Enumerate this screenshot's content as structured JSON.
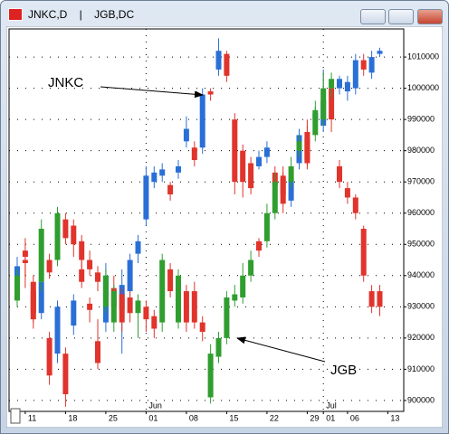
{
  "window_title": "JNKC,D    |    JGB,DC",
  "chart_data": {
    "type": "candlestick",
    "categories": [
      null,
      "11",
      null,
      null,
      null,
      null,
      "18",
      null,
      null,
      null,
      null,
      "25",
      null,
      null,
      null,
      null,
      "01",
      null,
      null,
      null,
      null,
      "08",
      null,
      null,
      null,
      null,
      "15",
      null,
      null,
      null,
      null,
      "22",
      null,
      null,
      null,
      null,
      "29",
      null,
      "01",
      null,
      null,
      "06",
      null,
      null,
      null,
      null,
      "13"
    ],
    "months": [
      null,
      null,
      null,
      null,
      null,
      null,
      null,
      null,
      null,
      null,
      null,
      null,
      null,
      null,
      null,
      null,
      "Jun",
      null,
      null,
      null,
      null,
      null,
      null,
      null,
      null,
      null,
      null,
      null,
      null,
      null,
      null,
      null,
      null,
      null,
      null,
      null,
      null,
      null,
      "Jul",
      null,
      null,
      null,
      null,
      null,
      null,
      null,
      null
    ],
    "ylim": [
      896500,
      1019000
    ],
    "yticks": [
      900000,
      910000,
      920000,
      930000,
      940000,
      950000,
      960000,
      970000,
      980000,
      990000,
      1000000,
      1010000
    ],
    "grid": true,
    "annotations": [
      "JNKC",
      "JGB"
    ],
    "series": [
      {
        "name": "JNKC",
        "up_color": "#2a6fd6",
        "down_color": "#e0342c",
        "open": [
          935000,
          945000,
          935000,
          928000,
          920000,
          915000,
          915000,
          924000,
          942000,
          931000,
          919000,
          925000,
          936000,
          929000,
          935000,
          947000,
          958000,
          970000,
          972000,
          969000,
          973000,
          983000,
          981000,
          981000,
          999000,
          1006000,
          1011000,
          990000,
          980000,
          976000,
          975000,
          978000,
          973000,
          971000,
          964000,
          976000,
          986000,
          990000,
          988000,
          1000000,
          1000000,
          999000,
          1000000,
          1009000,
          1005000,
          1011000,
          null
        ],
        "high": [
          946000,
          947000,
          937000,
          940000,
          922000,
          932000,
          917000,
          934000,
          945000,
          933000,
          926000,
          944000,
          940000,
          942000,
          947000,
          953000,
          975000,
          975000,
          976000,
          970000,
          977000,
          991000,
          983000,
          1000000,
          1000000,
          1016000,
          1012000,
          992000,
          982000,
          978000,
          980000,
          983000,
          975000,
          973000,
          973000,
          987000,
          988000,
          994000,
          1006000,
          1002000,
          1004000,
          1004000,
          1011000,
          1011000,
          1012000,
          1013000,
          null
        ],
        "low": [
          932000,
          940000,
          923000,
          926000,
          905000,
          912000,
          898000,
          921000,
          936000,
          925000,
          910000,
          922000,
          928000,
          915000,
          933000,
          944000,
          956000,
          968000,
          970000,
          964000,
          971000,
          981000,
          975000,
          979000,
          996000,
          1004000,
          1002000,
          966000,
          965000,
          966000,
          974000,
          976000,
          966000,
          960000,
          962000,
          974000,
          975000,
          988000,
          986000,
          986000,
          998000,
          996000,
          998000,
          1004000,
          1003000,
          1010000,
          null
        ],
        "close": [
          943000,
          944000,
          926000,
          938000,
          908000,
          930000,
          902000,
          932000,
          938000,
          929000,
          912000,
          940000,
          930000,
          937000,
          945000,
          951000,
          972000,
          973000,
          974000,
          966000,
          975000,
          987000,
          977000,
          998000,
          998000,
          1012000,
          1004000,
          970000,
          970000,
          968000,
          978000,
          981000,
          969000,
          963000,
          971000,
          985000,
          977000,
          992000,
          996000,
          990000,
          1003000,
          1002000,
          1009000,
          1006000,
          1010000,
          1012000,
          null
        ]
      },
      {
        "name": "JGB",
        "up_color": "#2f9e2f",
        "down_color": "#e0342c",
        "open": [
          932000,
          948000,
          938000,
          938000,
          945000,
          945000,
          958000,
          956000,
          951000,
          945000,
          941000,
          930000,
          925000,
          934000,
          933000,
          928000,
          930000,
          927000,
          925000,
          942000,
          925000,
          935000,
          935000,
          925000,
          901000,
          914000,
          920000,
          932000,
          933000,
          940000,
          951000,
          951000,
          960000,
          972000,
          970000,
          980000,
          984000,
          985000,
          990000,
          1000000,
          975000,
          968000,
          965000,
          955000,
          935000,
          935000,
          null
        ],
        "high": [
          942000,
          952000,
          940000,
          958000,
          947000,
          962000,
          960000,
          958000,
          953000,
          948000,
          943000,
          942000,
          937000,
          936000,
          935000,
          934000,
          932000,
          929000,
          947000,
          944000,
          942000,
          937000,
          938000,
          927000,
          918000,
          922000,
          935000,
          937000,
          944000,
          948000,
          952000,
          963000,
          973000,
          975000,
          978000,
          985000,
          990000,
          996000,
          1005000,
          1005000,
          977000,
          970000,
          966000,
          956000,
          937000,
          937000,
          null
        ],
        "low": [
          930000,
          936000,
          925000,
          935000,
          939000,
          943000,
          950000,
          946000,
          940000,
          940000,
          935000,
          928000,
          922000,
          922000,
          925000,
          920000,
          922000,
          920000,
          922000,
          933000,
          923000,
          922000,
          923000,
          919000,
          899000,
          912000,
          918000,
          930000,
          931000,
          938000,
          946000,
          949000,
          958000,
          964000,
          968000,
          978000,
          974000,
          983000,
          988000,
          997000,
          968000,
          963000,
          958000,
          938000,
          928000,
          927000,
          null
        ],
        "close": [
          940000,
          946000,
          928000,
          955000,
          941000,
          960000,
          952000,
          950000,
          945000,
          942000,
          938000,
          940000,
          935000,
          925000,
          928000,
          932000,
          926000,
          923000,
          945000,
          935000,
          940000,
          925000,
          925000,
          922000,
          915000,
          920000,
          933000,
          934000,
          940000,
          945000,
          948000,
          960000,
          970000,
          966000,
          975000,
          983000,
          976000,
          993000,
          1000000,
          1003000,
          970000,
          965000,
          960000,
          940000,
          930000,
          930000,
          null
        ]
      }
    ]
  }
}
